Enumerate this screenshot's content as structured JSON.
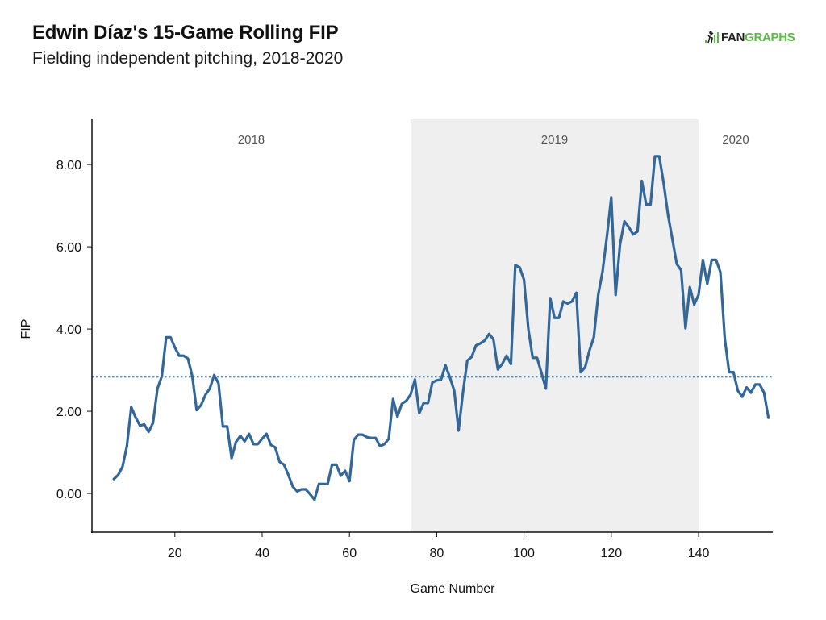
{
  "header": {
    "title": "Edwin Díaz's 15-Game Rolling FIP",
    "subtitle": "Fielding independent pitching, 2018-2020",
    "logo_text_dark": "FAN",
    "logo_text_green": "GRAPHS",
    "logo_icon": "batter-bars-icon"
  },
  "colors": {
    "line": "#336699",
    "season_band": "#efefef",
    "axis": "#111111",
    "logo_green": "#5cb946"
  },
  "chart_data": {
    "type": "line",
    "title": "Edwin Díaz's 15-Game Rolling FIP",
    "subtitle": "Fielding independent pitching, 2018-2020",
    "xlabel": "Game Number",
    "ylabel": "FIP",
    "xlim": [
      1,
      157
    ],
    "ylim": [
      -0.94,
      9.1
    ],
    "x_ticks": [
      20,
      40,
      60,
      80,
      100,
      120,
      140
    ],
    "x_tick_labels": [
      "20",
      "40",
      "60",
      "80",
      "100",
      "120",
      "140"
    ],
    "y_ticks": [
      0,
      2,
      4,
      6,
      8
    ],
    "y_tick_labels": [
      "0.00",
      "2.00",
      "4.00",
      "6.00",
      "8.00"
    ],
    "grid": false,
    "reference_line": {
      "value": 2.84,
      "style": "dotted"
    },
    "seasons": [
      {
        "label": "2018",
        "start": 1,
        "end": 74,
        "shaded": false
      },
      {
        "label": "2019",
        "start": 74,
        "end": 140,
        "shaded": true
      },
      {
        "label": "2020",
        "start": 140,
        "end": 157,
        "shaded": false
      }
    ],
    "series": [
      {
        "name": "15-Game Rolling FIP",
        "x_start": 6,
        "values": [
          0.35,
          0.45,
          0.65,
          1.15,
          2.1,
          1.85,
          1.65,
          1.68,
          1.5,
          1.72,
          2.55,
          2.85,
          3.8,
          3.8,
          3.55,
          3.35,
          3.35,
          3.28,
          2.85,
          2.03,
          2.15,
          2.4,
          2.55,
          2.88,
          2.68,
          1.63,
          1.63,
          0.86,
          1.25,
          1.4,
          1.27,
          1.45,
          1.2,
          1.2,
          1.33,
          1.45,
          1.18,
          1.12,
          0.77,
          0.7,
          0.45,
          0.17,
          0.05,
          0.1,
          0.1,
          -0.02,
          -0.15,
          0.23,
          0.23,
          0.23,
          0.7,
          0.7,
          0.43,
          0.55,
          0.3,
          1.3,
          1.43,
          1.43,
          1.37,
          1.35,
          1.35,
          1.15,
          1.2,
          1.33,
          2.3,
          1.87,
          2.18,
          2.25,
          2.4,
          2.77,
          1.95,
          2.2,
          2.2,
          2.7,
          2.75,
          2.77,
          3.12,
          2.83,
          2.5,
          1.53,
          2.45,
          3.23,
          3.32,
          3.6,
          3.65,
          3.72,
          3.88,
          3.75,
          3.02,
          3.15,
          3.35,
          3.15,
          5.55,
          5.5,
          5.2,
          4.0,
          3.3,
          3.3,
          2.93,
          2.55,
          4.75,
          4.27,
          4.27,
          4.67,
          4.62,
          4.67,
          4.88,
          2.95,
          3.07,
          3.48,
          3.8,
          4.83,
          5.4,
          6.25,
          7.2,
          4.83,
          6.05,
          6.62,
          6.48,
          6.3,
          6.37,
          7.6,
          7.03,
          7.03,
          8.2,
          8.2,
          7.55,
          6.77,
          6.18,
          5.58,
          5.43,
          4.02,
          5.02,
          4.6,
          4.83,
          5.68,
          5.1,
          5.68,
          5.68,
          5.38,
          3.77,
          2.95,
          2.95,
          2.5,
          2.35,
          2.58,
          2.45,
          2.65,
          2.65,
          2.45,
          1.84
        ]
      }
    ]
  }
}
